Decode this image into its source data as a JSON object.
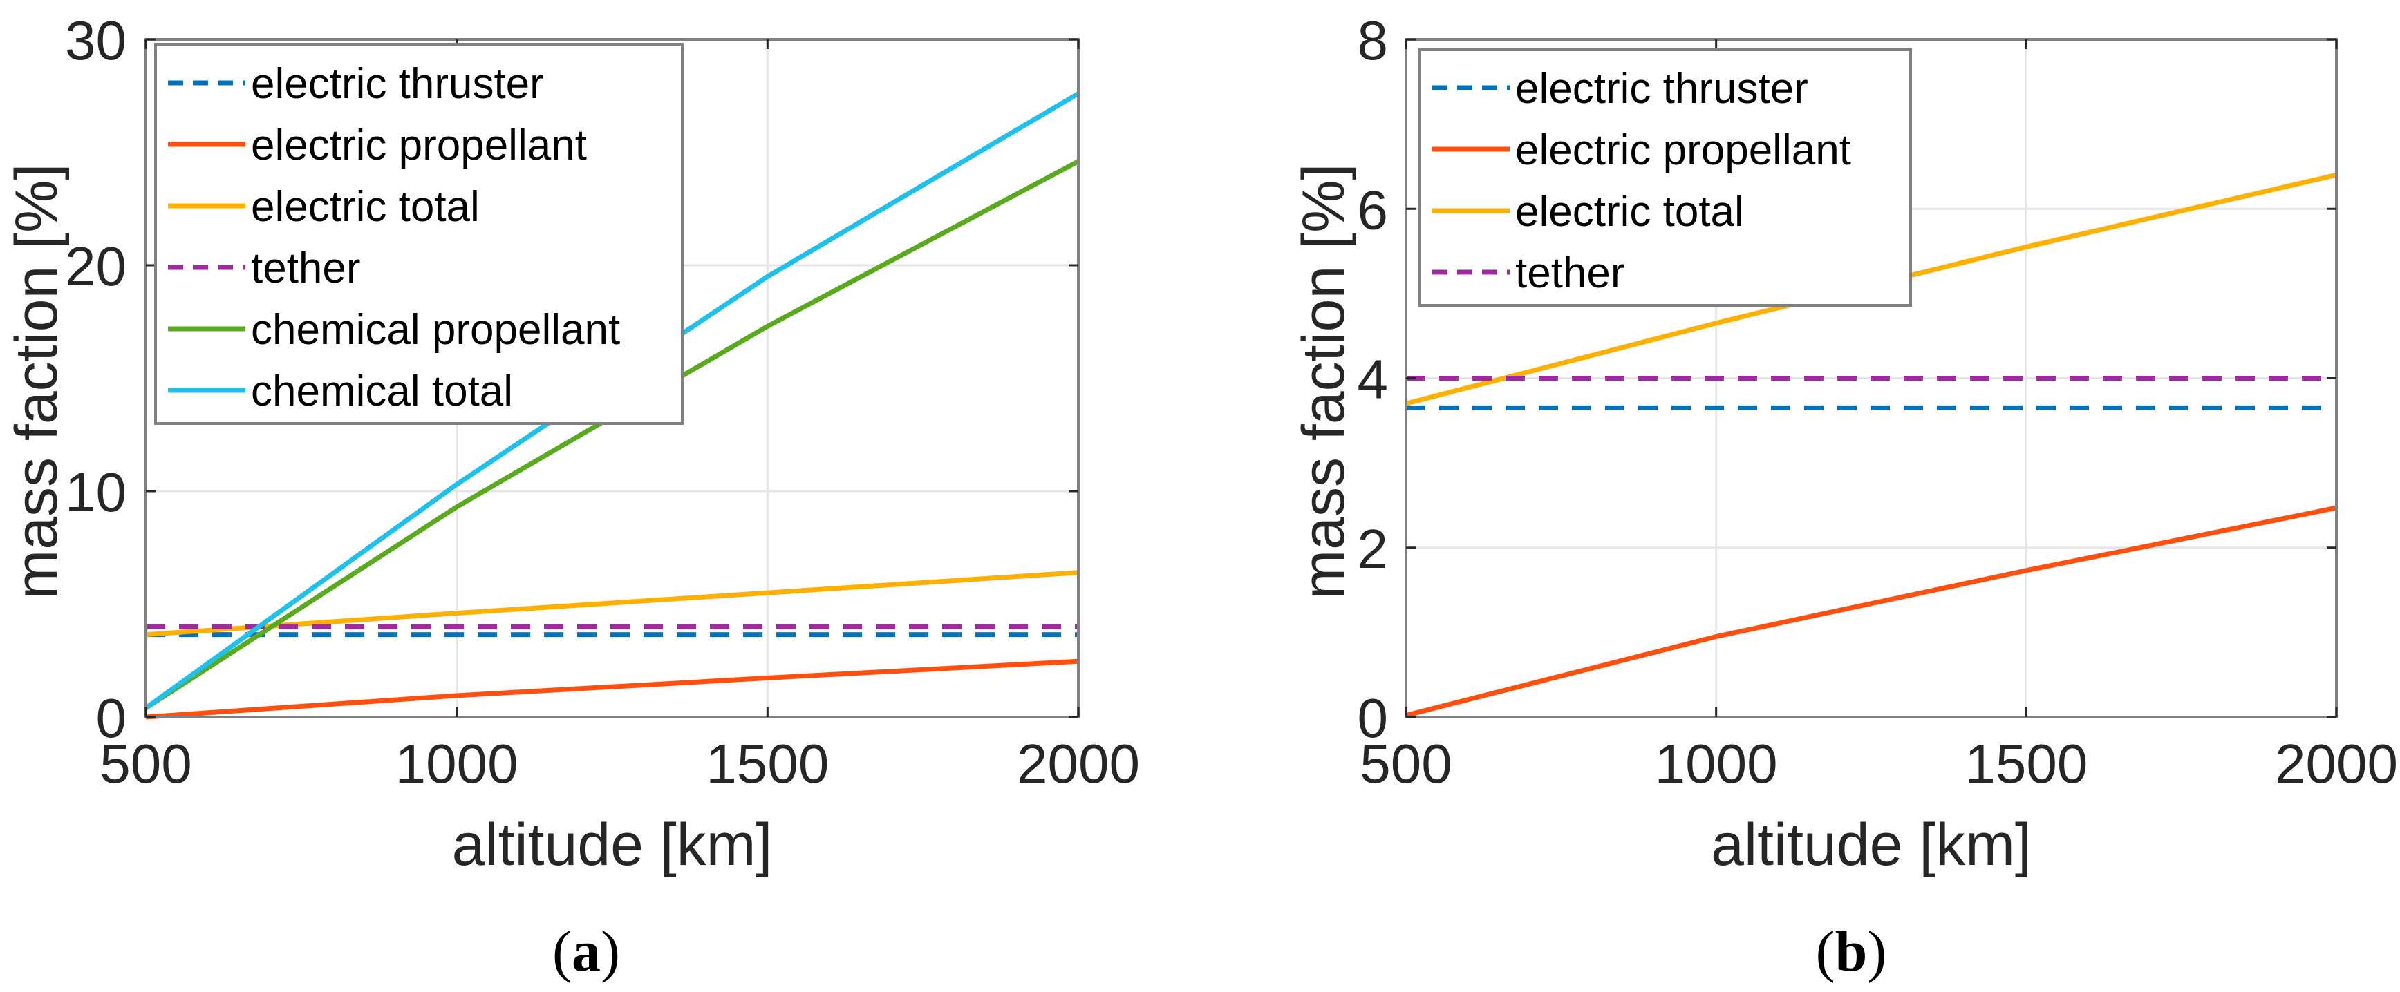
{
  "chart_data": [
    {
      "type": "line",
      "panel_label": "a",
      "xlabel": "altitude [km]",
      "ylabel": "mass faction [%]",
      "xlim": [
        500,
        2000
      ],
      "ylim": [
        0,
        30
      ],
      "xticks": [
        500,
        1000,
        1500,
        2000
      ],
      "yticks": [
        0,
        10,
        20,
        30
      ],
      "grid": true,
      "legend_position": "top-left",
      "x": [
        500,
        1000,
        1500,
        2000
      ],
      "series": [
        {
          "name": "electric thruster",
          "color": "#0072BD",
          "dashed": true,
          "values": [
            3.65,
            3.65,
            3.65,
            3.65
          ]
        },
        {
          "name": "electric propellant",
          "color": "#FF5010",
          "dashed": false,
          "values": [
            0.0,
            0.95,
            1.73,
            2.47
          ]
        },
        {
          "name": "electric total",
          "color": "#FFB000",
          "dashed": false,
          "values": [
            3.65,
            4.6,
            5.5,
            6.4
          ]
        },
        {
          "name": "tether",
          "color": "#9E2A9E",
          "dashed": true,
          "values": [
            4.0,
            4.0,
            4.0,
            4.0
          ]
        },
        {
          "name": "chemical propellant",
          "color": "#5AAA1E",
          "dashed": false,
          "values": [
            0.4,
            9.3,
            17.3,
            24.6
          ]
        },
        {
          "name": "chemical total",
          "color": "#1EC0EC",
          "dashed": false,
          "values": [
            0.4,
            10.3,
            19.5,
            27.6
          ]
        }
      ]
    },
    {
      "type": "line",
      "panel_label": "b",
      "xlabel": "altitude [km]",
      "ylabel": "mass faction [%]",
      "xlim": [
        500,
        2000
      ],
      "ylim": [
        0,
        8
      ],
      "xticks": [
        500,
        1000,
        1500,
        2000
      ],
      "yticks": [
        0,
        2,
        4,
        6,
        8
      ],
      "grid": true,
      "legend_position": "top-left",
      "x": [
        500,
        1000,
        1500,
        2000
      ],
      "series": [
        {
          "name": "electric thruster",
          "color": "#0072BD",
          "dashed": true,
          "values": [
            3.65,
            3.65,
            3.65,
            3.65
          ]
        },
        {
          "name": "electric propellant",
          "color": "#FF5010",
          "dashed": false,
          "values": [
            0.02,
            0.95,
            1.73,
            2.47
          ]
        },
        {
          "name": "electric total",
          "color": "#FFB000",
          "dashed": false,
          "values": [
            3.7,
            4.65,
            5.55,
            6.4
          ]
        },
        {
          "name": "tether",
          "color": "#9E2A9E",
          "dashed": true,
          "values": [
            4.0,
            4.0,
            4.0,
            4.0
          ]
        }
      ]
    }
  ]
}
